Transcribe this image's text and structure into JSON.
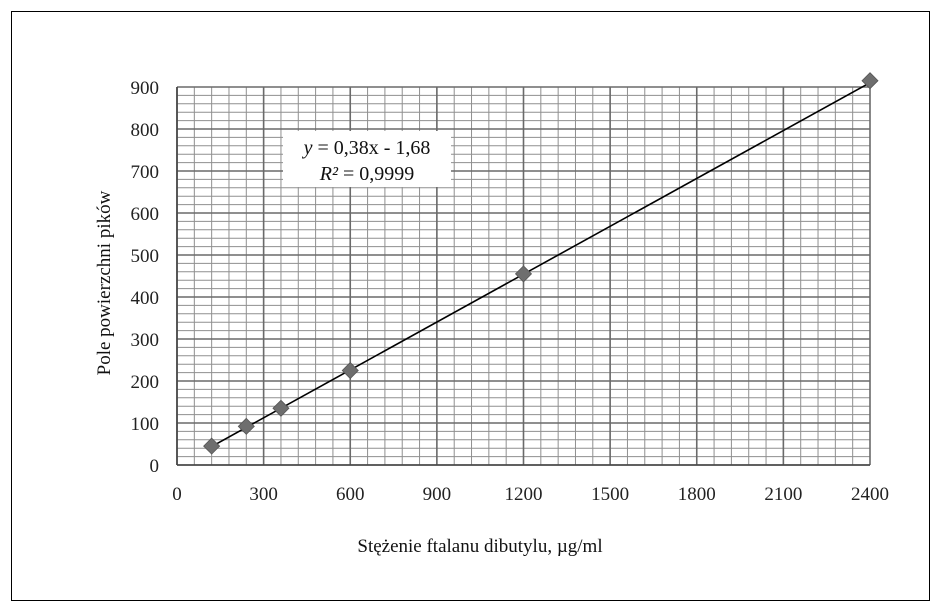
{
  "chart_data": {
    "type": "scatter",
    "xlabel": "Stężenie ftalanu dibutylu, µg/ml",
    "ylabel": "Pole powierzchni pików",
    "xlim": [
      0,
      2400
    ],
    "ylim": [
      0,
      900
    ],
    "x_ticks": [
      "0",
      "300",
      "600",
      "900",
      "1200",
      "1500",
      "1800",
      "2100",
      "2400"
    ],
    "y_ticks": [
      "0",
      "100",
      "200",
      "300",
      "400",
      "500",
      "600",
      "700",
      "800",
      "900"
    ],
    "grid": true,
    "legend": "none",
    "series": [
      {
        "marker": "diamond",
        "color": "#6e6e6e",
        "x": [
          120,
          240,
          360,
          600,
          1200,
          2400
        ],
        "y": [
          45,
          92,
          135,
          225,
          455,
          915
        ]
      }
    ],
    "trendline": {
      "type": "linear",
      "slope": 0.38,
      "intercept": -1.68,
      "color": "#000000",
      "equation_prefix": "y",
      "equation_rest": " = 0,38x - 1,68",
      "r2_prefix": "R²",
      "r2_rest": " = 0,9999"
    }
  }
}
